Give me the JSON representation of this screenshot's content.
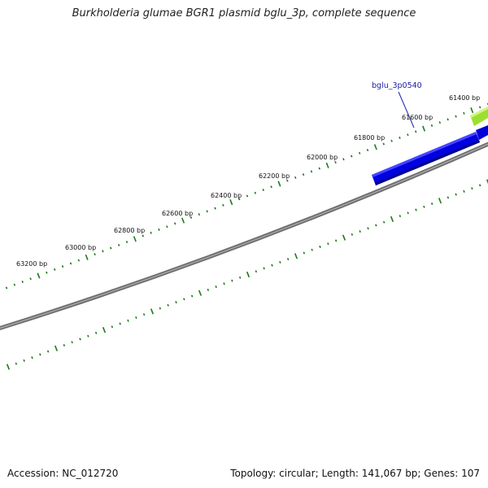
{
  "title": "Burkholderia glumae BGR1 plasmid bglu_3p, complete sequence",
  "footer": {
    "accession_label": "Accession:",
    "accession": "NC_012720",
    "topology_label": "Topology:",
    "topology": "circular",
    "length_label": "Length:",
    "length": "141,067 bp",
    "genes_label": "Genes:",
    "genes": "107"
  },
  "position_labels": [
    "61400 bp",
    "61600 bp",
    "61800 bp",
    "62000 bp",
    "62200 bp",
    "62400 bp",
    "62600 bp",
    "62800 bp",
    "63000 bp",
    "63200 bp"
  ],
  "gene_label": "bglu_3p0540",
  "colors": {
    "backbone": "#7a7a7a",
    "tick": "#1a7a1a",
    "gene_forward": "#0000e6",
    "gene_other": "#9be030",
    "gene_label": "#1a1aa8",
    "bp_label": "#111111"
  }
}
